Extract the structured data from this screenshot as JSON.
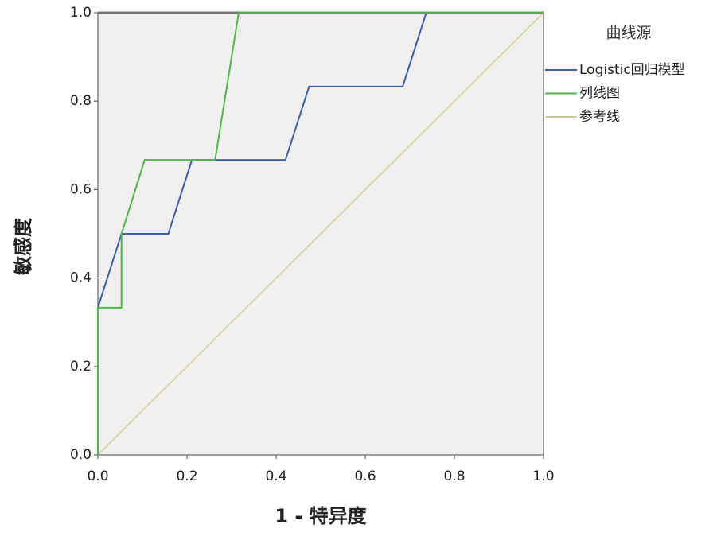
{
  "chart_data": {
    "type": "line",
    "xlabel": "1 - 特异度",
    "ylabel": "敏感度",
    "legend_title": "曲线源",
    "series": [
      {
        "name": "Logistic回归模型",
        "color": "#3a5fae",
        "x": [
          0,
          0,
          0.053,
          0.158,
          0.211,
          0.421,
          0.474,
          0.684,
          0.737,
          1
        ],
        "values": [
          0,
          0.333,
          0.5,
          0.5,
          0.667,
          0.667,
          0.833,
          0.833,
          1,
          1
        ]
      },
      {
        "name": "列线图",
        "color": "#4cb847",
        "x": [
          0,
          0,
          0.053,
          0.053,
          0.105,
          0.263,
          0.316,
          1
        ],
        "values": [
          0,
          0.333,
          0.333,
          0.5,
          0.667,
          0.667,
          1,
          1
        ]
      },
      {
        "name": "参考线",
        "color": "#d6cc8e",
        "x": [
          0,
          1
        ],
        "values": [
          0,
          1
        ]
      }
    ],
    "xlim": [
      0,
      1
    ],
    "ylim": [
      0,
      1
    ],
    "xticks": [
      {
        "value": 0,
        "label": "0.0"
      },
      {
        "value": 0.2,
        "label": "0.2"
      },
      {
        "value": 0.4,
        "label": "0.4"
      },
      {
        "value": 0.6,
        "label": "0.6"
      },
      {
        "value": 0.8,
        "label": "0.8"
      },
      {
        "value": 1,
        "label": "1.0"
      }
    ],
    "yticks": [
      {
        "value": 0,
        "label": "0.0"
      },
      {
        "value": 0.2,
        "label": "0.2"
      },
      {
        "value": 0.4,
        "label": "0.4"
      },
      {
        "value": 0.6,
        "label": "0.6"
      },
      {
        "value": 0.8,
        "label": "0.8"
      },
      {
        "value": 1,
        "label": "1.0"
      }
    ]
  }
}
